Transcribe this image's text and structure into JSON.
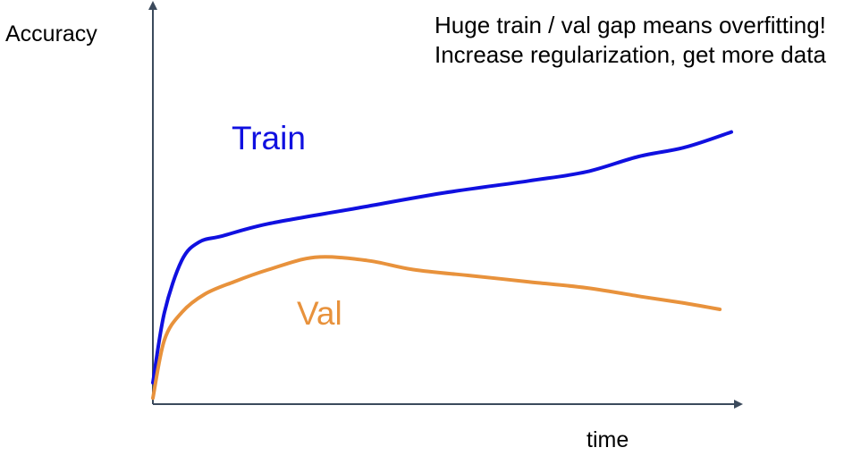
{
  "chart_data": {
    "type": "line",
    "title": "",
    "xlabel": "time",
    "ylabel": "Accuracy",
    "grid": false,
    "xlim": [
      0,
      100
    ],
    "ylim": [
      0,
      100
    ],
    "annotation": "Huge train / val gap means overfitting! Increase regularization, get more data",
    "series": [
      {
        "name": "Train",
        "color": "#1010e0",
        "x": [
          0,
          2,
          5,
          8,
          12,
          20,
          35,
          50,
          65,
          75,
          84,
          92,
          100
        ],
        "y": [
          7,
          30,
          47,
          53,
          55,
          59,
          64,
          69,
          73,
          76,
          81,
          84,
          89
        ]
      },
      {
        "name": "Val",
        "color": "#e8923c",
        "x": [
          0,
          2,
          5,
          9,
          14,
          20,
          28,
          37,
          45,
          55,
          65,
          75,
          85,
          92,
          98
        ],
        "y": [
          2,
          21,
          30,
          36,
          40,
          44,
          48,
          47,
          44,
          42,
          40,
          38,
          35,
          33,
          31
        ]
      }
    ]
  }
}
